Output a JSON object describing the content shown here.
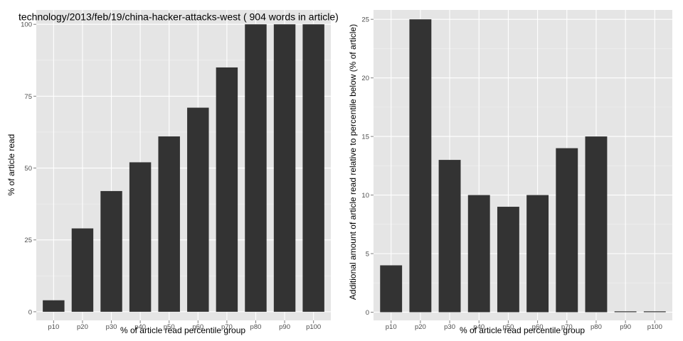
{
  "chart_data": [
    {
      "type": "bar",
      "title": "technology/2013/feb/19/china-hacker-attacks-west ( 904 words in article)",
      "xlabel": "% of article read percentile group",
      "ylabel": "% of article read",
      "categories": [
        "p10",
        "p20",
        "p30",
        "p40",
        "p50",
        "p60",
        "p70",
        "p80",
        "p90",
        "p100"
      ],
      "values": [
        4,
        29,
        42,
        52,
        61,
        71,
        85,
        100,
        100,
        100
      ],
      "ylim": [
        -3,
        105
      ],
      "yticks": [
        0,
        25,
        50,
        75,
        100
      ],
      "grid": true,
      "bar_color": "#333333",
      "panel_color": "#e5e5e5"
    },
    {
      "type": "bar",
      "title": "",
      "xlabel": "% of article read percentile group",
      "ylabel": "Additional amount of article read relative to percentile below (% of article)",
      "categories": [
        "p10",
        "p20",
        "p30",
        "p40",
        "p50",
        "p60",
        "p70",
        "p80",
        "p90",
        "p100"
      ],
      "values": [
        4,
        25,
        13,
        10,
        9,
        10,
        14,
        15,
        0,
        0
      ],
      "ylim": [
        -0.7,
        25.8
      ],
      "yticks": [
        0,
        5,
        10,
        15,
        20,
        25
      ],
      "grid": true,
      "bar_color": "#333333",
      "panel_color": "#e5e5e5"
    }
  ]
}
